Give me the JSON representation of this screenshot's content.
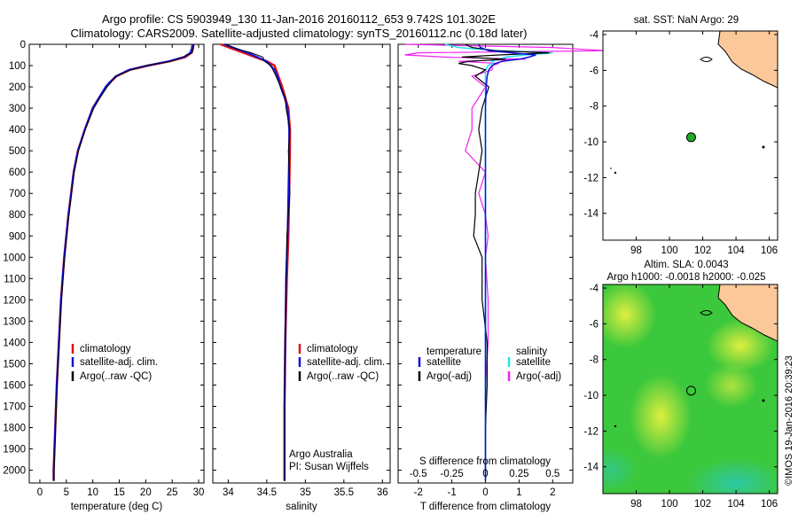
{
  "header": {
    "title_line1": "Argo profile: CS 5903949_130 11-Jan-2016 20160112_653 9.742S 101.302E",
    "title_line2": "Climatology: CARS2009. Satellite-adjusted climatology: synTS_20160112.nc (0.18d later)"
  },
  "colors": {
    "clim": "#e01010",
    "sat": "#1010e0",
    "argo": "#000000",
    "sat_s": "#20e0f0",
    "argo_s": "#f020f0",
    "land": "#fbc89a",
    "dot": "#22aa22"
  },
  "chart_data": [
    {
      "type": "line",
      "id": "temperature",
      "xlabel": "temperature (deg C)",
      "xlim": [
        -2,
        31
      ],
      "xticks": [
        0,
        5,
        10,
        15,
        20,
        25,
        30
      ],
      "ylim": [
        2060,
        0
      ],
      "yticks": [
        0,
        100,
        200,
        300,
        400,
        500,
        600,
        700,
        800,
        900,
        1000,
        1100,
        1200,
        1300,
        1400,
        1500,
        1600,
        1700,
        1800,
        1900,
        2000
      ],
      "depth": [
        0,
        20,
        40,
        60,
        80,
        100,
        120,
        150,
        180,
        200,
        250,
        300,
        400,
        500,
        600,
        700,
        800,
        900,
        1000,
        1200,
        1400,
        1600,
        1800,
        2000,
        2050
      ],
      "series": [
        {
          "name": "climatology",
          "values": [
            29.0,
            28.9,
            28.6,
            27.5,
            24.5,
            20.5,
            17.0,
            14.5,
            13.2,
            12.5,
            11.2,
            10.0,
            8.5,
            7.2,
            6.4,
            5.9,
            5.4,
            5.0,
            4.6,
            4.0,
            3.6,
            3.2,
            2.9,
            2.6,
            2.6
          ]
        },
        {
          "name": "satellite-adj. clim.",
          "values": [
            28.8,
            28.7,
            28.4,
            27.2,
            24.3,
            20.3,
            16.8,
            14.4,
            13.1,
            12.4,
            11.2,
            10.0,
            8.5,
            7.2,
            6.4,
            5.9,
            5.4,
            5.0,
            4.6,
            4.0,
            3.6,
            3.2,
            2.9,
            2.6,
            2.6
          ]
        },
        {
          "name": "Argo(..raw -QC)",
          "values": [
            29.1,
            29.0,
            28.8,
            27.0,
            24.8,
            20.0,
            17.3,
            14.2,
            13.4,
            12.7,
            11.4,
            10.2,
            8.6,
            7.3,
            6.5,
            6.0,
            5.5,
            5.1,
            4.7,
            4.1,
            3.7,
            3.3,
            3.0,
            2.7,
            2.7
          ]
        }
      ],
      "legend": [
        "climatology",
        "satellite-adj. clim.",
        "Argo(..raw -QC)"
      ]
    },
    {
      "type": "line",
      "id": "salinity",
      "xlabel": "salinity",
      "xlim": [
        33.8,
        36.1
      ],
      "xticks": [
        34,
        34.5,
        35,
        35.5,
        36
      ],
      "xticklabels": [
        "34",
        "34.5",
        "35",
        "35.5",
        "36"
      ],
      "depth": [
        0,
        20,
        40,
        60,
        80,
        100,
        120,
        150,
        200,
        250,
        300,
        400,
        500,
        700,
        900,
        1100,
        1400,
        1700,
        2000,
        2050
      ],
      "series": [
        {
          "name": "climatology",
          "values": [
            33.9,
            34.05,
            34.2,
            34.35,
            34.5,
            34.6,
            34.62,
            34.65,
            34.7,
            34.74,
            34.78,
            34.8,
            34.8,
            34.79,
            34.78,
            34.76,
            34.74,
            34.73,
            34.73,
            34.73
          ]
        },
        {
          "name": "satellite-adj. clim.",
          "values": [
            33.95,
            34.1,
            34.25,
            34.38,
            34.5,
            34.55,
            34.6,
            34.64,
            34.68,
            34.73,
            34.77,
            34.79,
            34.79,
            34.78,
            34.77,
            34.75,
            34.74,
            34.73,
            34.73,
            34.73
          ]
        },
        {
          "name": "Argo(..raw -QC)",
          "values": [
            33.97,
            34.1,
            34.3,
            34.45,
            34.47,
            34.55,
            34.58,
            34.62,
            34.68,
            34.74,
            34.75,
            34.8,
            34.78,
            34.8,
            34.76,
            34.75,
            34.74,
            34.73,
            34.73,
            34.73
          ]
        }
      ],
      "legend": [
        "climatology",
        "satellite-adj. clim.",
        "Argo(..raw -QC)"
      ],
      "annotation": [
        "Argo Australia",
        "PI: Susan Wijffels"
      ]
    },
    {
      "type": "line",
      "id": "differences",
      "xlabel": "T difference from climatology",
      "xlabel_top": "S difference from climatology",
      "xlim": [
        -2.6,
        2.6
      ],
      "t_ticks": [
        -2,
        -1,
        0,
        1,
        2
      ],
      "s_ticks": [
        -0.5,
        -0.25,
        0,
        0.25,
        0.5
      ],
      "s_ticklabels": [
        "-0.5",
        "-0.25",
        "0",
        "0.25",
        "0.5"
      ],
      "depth": [
        0,
        15,
        30,
        40,
        50,
        60,
        70,
        80,
        90,
        100,
        120,
        150,
        200,
        300,
        400,
        500,
        600,
        700,
        800,
        900,
        1000,
        1200,
        1400,
        1600,
        1800,
        2000,
        2050
      ],
      "series": [
        {
          "name": "temperature satellite",
          "values": [
            -0.2,
            -0.15,
            0.1,
            0.8,
            1.5,
            1.3,
            1.0,
            0.5,
            0.3,
            0.2,
            0.1,
            0.05,
            0.02,
            0.0,
            0.0,
            0.0,
            0.0,
            0.0,
            0.0,
            0.0,
            0.0,
            0.0,
            0.0,
            0.0,
            0.0,
            0.0,
            0.0
          ]
        },
        {
          "name": "temperature Argo(-adj)",
          "values": [
            -0.6,
            -0.4,
            0.3,
            1.9,
            0.4,
            -0.7,
            0.6,
            -0.5,
            -0.8,
            -0.4,
            0.0,
            -0.3,
            0.1,
            -0.1,
            -0.2,
            -0.1,
            -0.2,
            -0.3,
            -0.3,
            -0.35,
            -0.1,
            -0.1,
            0.05,
            0.05,
            0.0,
            0.0,
            0.0
          ]
        },
        {
          "name": "salinity satellite",
          "values": [
            -0.3,
            -0.2,
            0.1,
            0.5,
            0.3,
            0.15,
            0.1,
            0.05,
            0.05,
            0.02,
            0.0,
            0.0,
            0.0,
            0.0,
            0.0,
            0.0,
            0.0,
            0.0,
            0.0,
            0.0,
            0.0,
            0.0,
            0.0,
            0.0,
            0.0,
            0.0,
            0.0
          ]
        },
        {
          "name": "salinity Argo(-adj)",
          "values": [
            -0.6,
            0.5,
            0.9,
            -0.5,
            -0.6,
            -0.3,
            0.3,
            -0.2,
            0.1,
            0.05,
            0.05,
            -0.1,
            0.0,
            -0.1,
            -0.1,
            -0.15,
            0.0,
            -0.05,
            0.0,
            0.02,
            0.0,
            0.02,
            0.02,
            0.0,
            0.0,
            0.0,
            0.0
          ]
        }
      ],
      "legend": {
        "temperature_title": "temperature",
        "salinity_title": "salinity",
        "items": [
          "satellite",
          "Argo(-adj)",
          "satellite",
          "Argo(-adj)"
        ]
      }
    },
    {
      "type": "map",
      "id": "sst",
      "title": "sat. SST: NaN Argo: 29",
      "xlim": [
        96,
        106.5
      ],
      "ylim": [
        -15.5,
        -3.8
      ],
      "xticks": [
        98,
        100,
        102,
        104,
        106
      ],
      "yticks": [
        -4,
        -6,
        -8,
        -10,
        -12,
        -14
      ],
      "argo_position": {
        "lon": 101.302,
        "lat": -9.742
      }
    },
    {
      "type": "heatmap",
      "id": "sla",
      "title_line1": "Altim. SLA: 0.0043",
      "title_line2": "Argo h1000: -0.0018 h2000: -0.025",
      "xlim": [
        96,
        106.5
      ],
      "ylim": [
        -15.5,
        -3.8
      ],
      "xticks": [
        98,
        100,
        102,
        104,
        106
      ],
      "yticks": [
        -4,
        -6,
        -8,
        -10,
        -12,
        -14
      ],
      "argo_position": {
        "lon": 101.302,
        "lat": -9.742
      }
    }
  ],
  "footer": {
    "stamp": "©IMOS 19-Jan-2016 20:39:23"
  }
}
